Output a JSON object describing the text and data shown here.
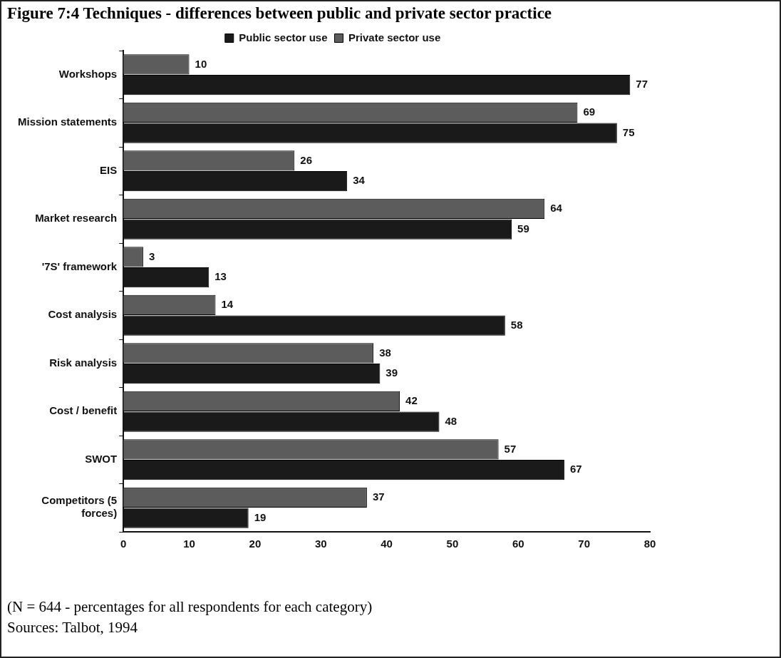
{
  "chart_data": {
    "type": "bar",
    "title": "Figure 7:4 Techniques - differences between public and private sector practice",
    "orientation": "horizontal",
    "categories": [
      "Workshops",
      "Mission statements",
      "EIS",
      "Market research",
      "'7S' framework",
      "Cost analysis",
      "Risk analysis",
      "Cost / benefit",
      "SWOT",
      "Competitors (5 forces)"
    ],
    "series": [
      {
        "name": "Public sector use",
        "color": "#1a1a1a",
        "values": [
          77,
          75,
          34,
          59,
          13,
          58,
          39,
          48,
          67,
          19
        ]
      },
      {
        "name": "Private sector use",
        "color": "#5c5c5c",
        "values": [
          10,
          69,
          26,
          64,
          3,
          14,
          38,
          42,
          57,
          37
        ]
      }
    ],
    "xlim": [
      0,
      80
    ],
    "xticks": [
      0,
      10,
      20,
      30,
      40,
      50,
      60,
      70,
      80
    ],
    "data_labels": true,
    "grid": false,
    "legend": "top",
    "annotations": [
      "(N = 644 - percentages for all respondents for each category)",
      "Sources: Talbot, 1994"
    ]
  }
}
